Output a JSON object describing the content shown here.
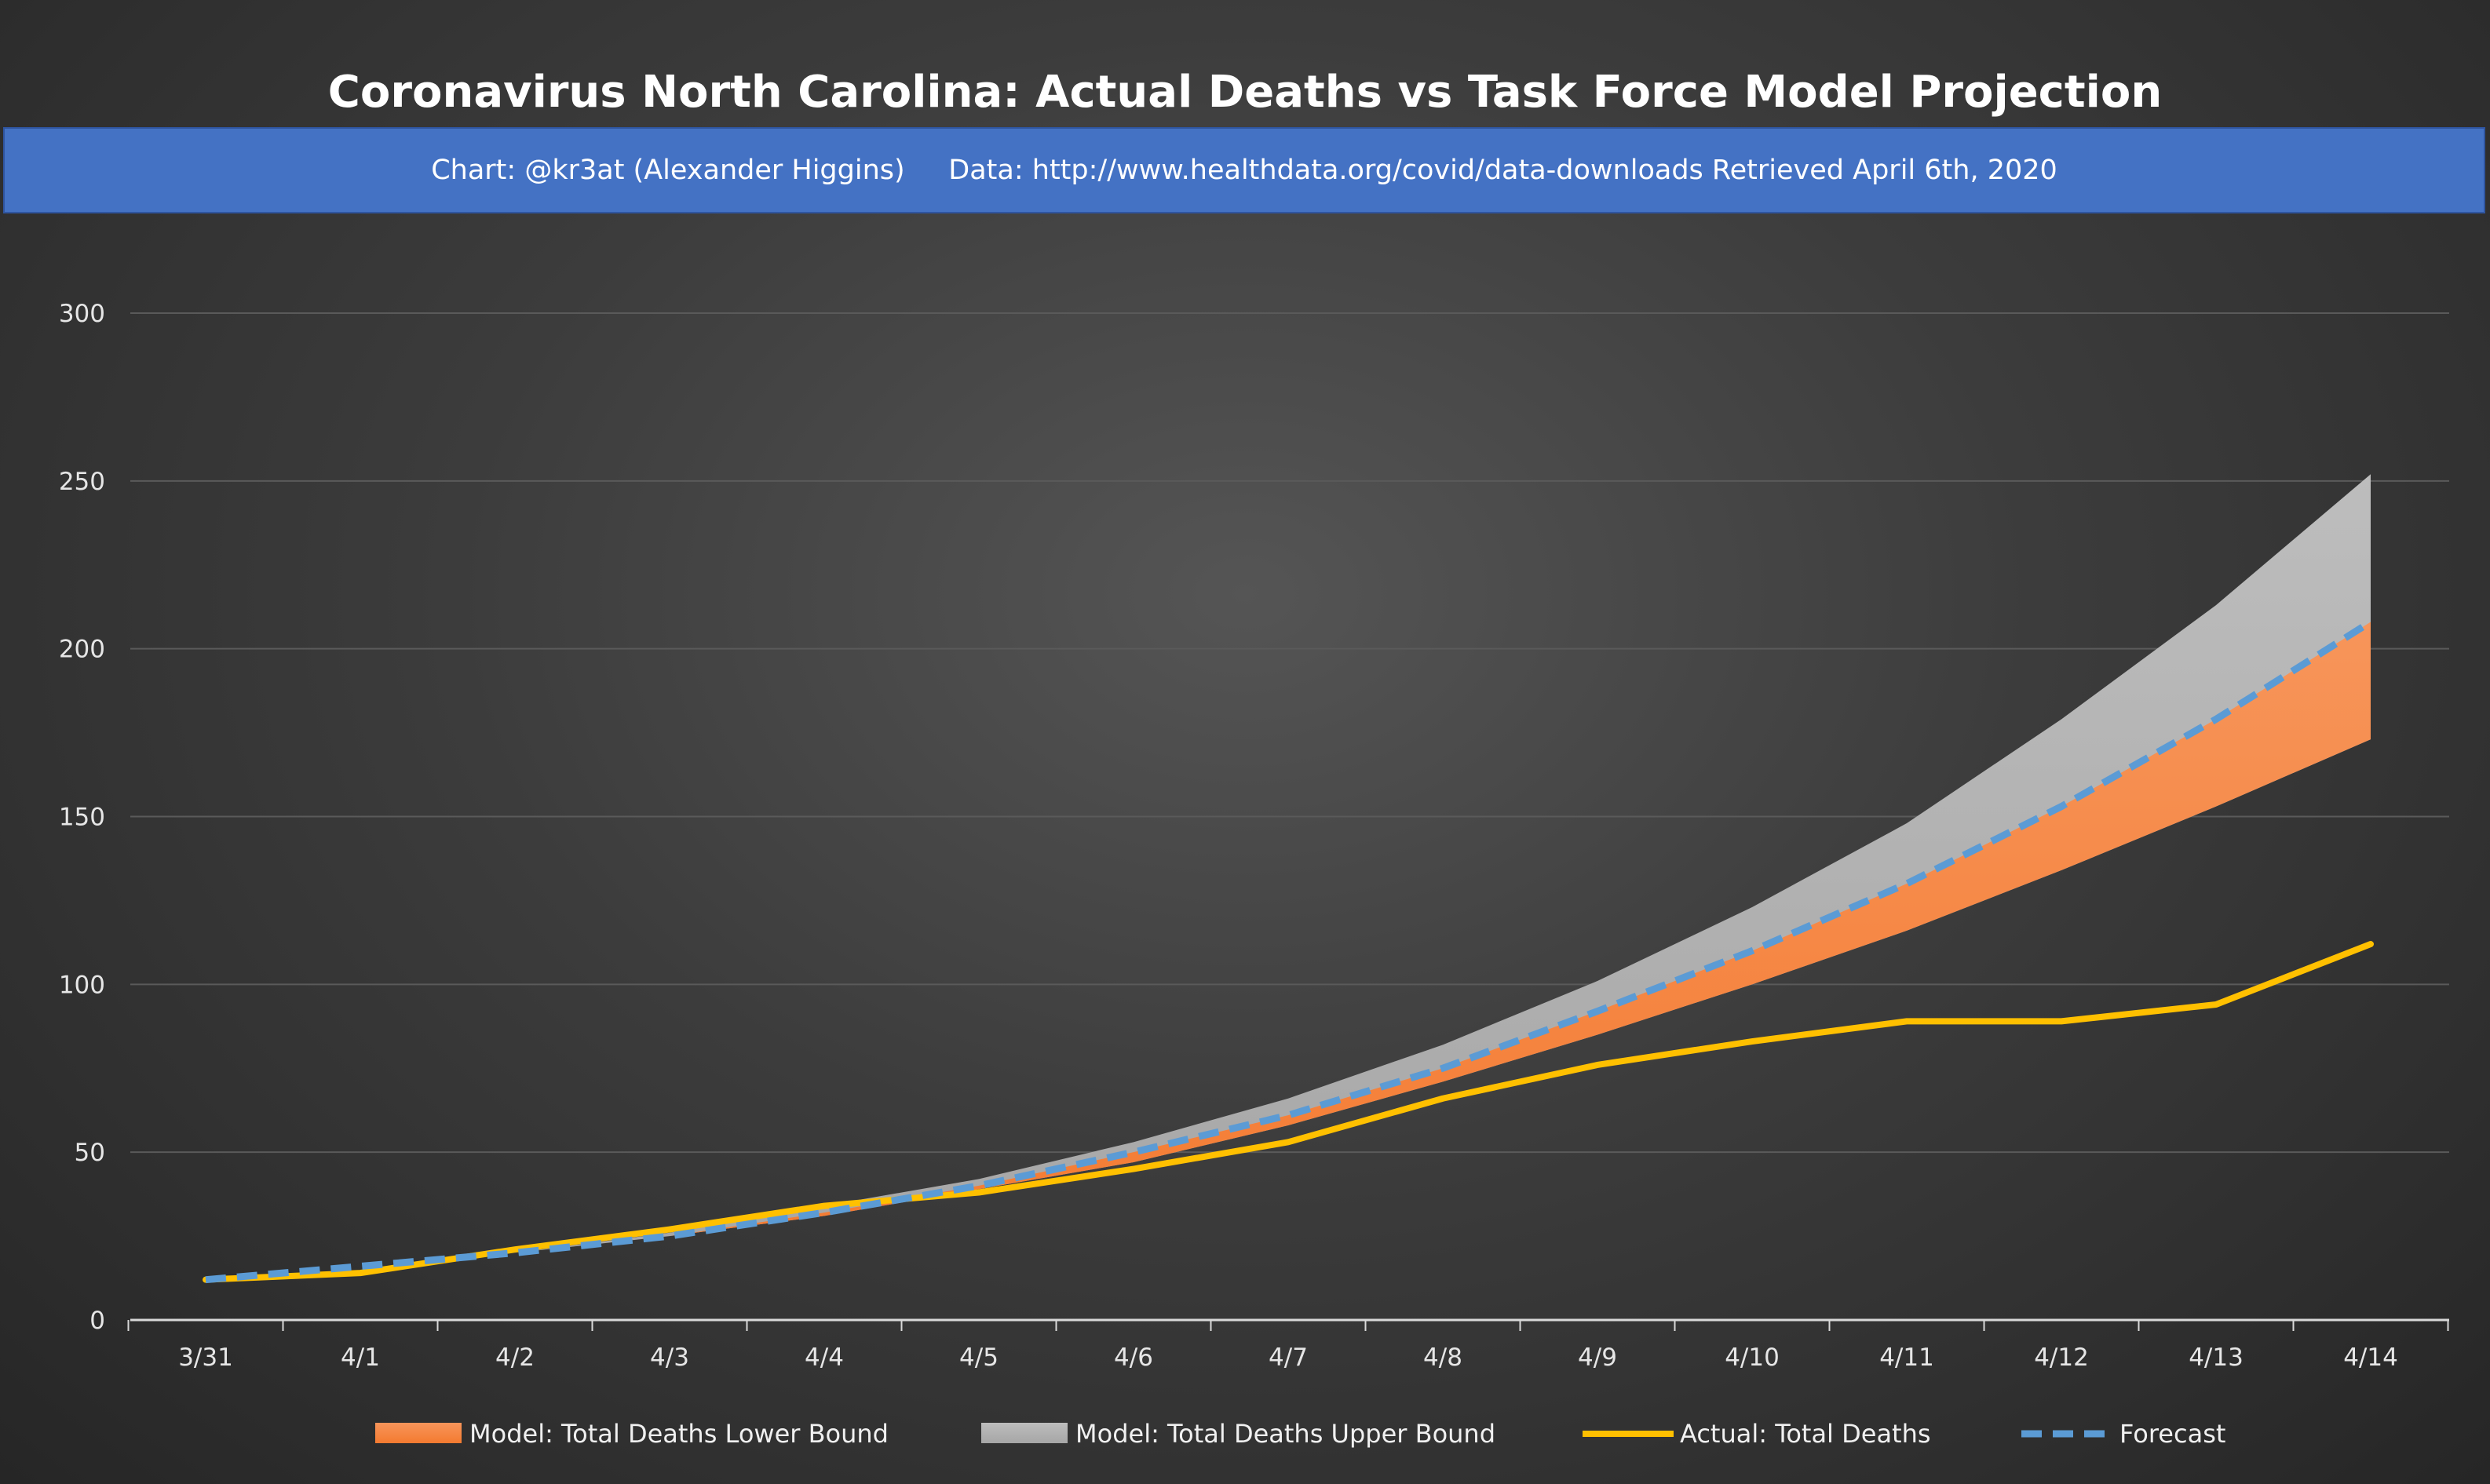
{
  "header": {
    "title": "Coronavirus North Carolina: Actual Deaths vs Task Force Model Projection",
    "subtitle": "Chart: @kr3at (Alexander Higgins)     Data: http://www.healthdata.org/covid/data-downloads Retrieved April 6th, 2020"
  },
  "colors": {
    "background": "#3c3c3c",
    "subtitle_bar": "#4472c4",
    "lower_bound_area": "#f47a30",
    "upper_bound_area": "#a6a6a6",
    "actual_line": "#ffc000",
    "forecast_line": "#5b9bd5",
    "gridline": "#5a5a5a",
    "axis_line": "#d9d9d9"
  },
  "chart_data": {
    "type": "area",
    "title": "Coronavirus North Carolina: Actual Deaths vs Task Force Model Projection",
    "subtitle": "Chart: @kr3at (Alexander Higgins)     Data: http://www.healthdata.org/covid/data-downloads Retrieved April 6th, 2020",
    "xlabel": "",
    "ylabel": "",
    "categories": [
      "3/31",
      "4/1",
      "4/2",
      "4/3",
      "4/4",
      "4/5",
      "4/6",
      "4/7",
      "4/8",
      "4/9",
      "4/10",
      "4/11",
      "4/12",
      "4/13",
      "4/14"
    ],
    "y_ticks": [
      0,
      50,
      100,
      150,
      200,
      250,
      300
    ],
    "ylim": [
      0,
      300
    ],
    "grid": "horizontal",
    "legend_position": "bottom",
    "series": [
      {
        "name": "Model: Total Deaths Lower Bound",
        "kind": "area",
        "color": "#f47a30",
        "values": [
          12,
          16,
          20,
          25,
          31,
          39,
          47,
          58,
          71,
          85,
          100,
          116,
          134,
          153,
          173
        ]
      },
      {
        "name": "Model: Total Deaths Upper Bound",
        "kind": "area",
        "color": "#a6a6a6",
        "values": [
          12,
          16,
          20,
          26,
          34,
          42,
          53,
          66,
          82,
          101,
          123,
          148,
          179,
          213,
          252
        ]
      },
      {
        "name": "Actual: Total Deaths",
        "kind": "line",
        "color": "#ffc000",
        "values": [
          12,
          14,
          21,
          27,
          34,
          38,
          45,
          53,
          66,
          76,
          83,
          89,
          89,
          94,
          112
        ]
      },
      {
        "name": "Forecast",
        "kind": "dashed-line",
        "color": "#5b9bd5",
        "values": [
          12,
          16,
          20,
          25,
          32,
          40,
          50,
          61,
          75,
          92,
          110,
          130,
          153,
          179,
          208
        ]
      }
    ]
  }
}
